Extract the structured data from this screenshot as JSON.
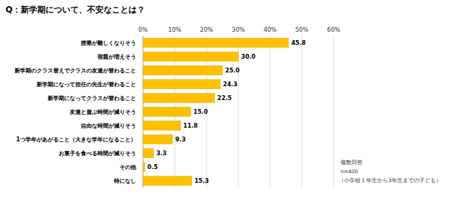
{
  "chart_data": {
    "type": "bar",
    "orientation": "horizontal",
    "title": "Q：新学期について、不安なことは？",
    "categories": [
      "授業が難しくなりそう",
      "宿題が増えそう",
      "新学期のクラス替えでクラスの友達が替わること",
      "新学期になって担任の先生が替わること",
      "新学期になってクラスが替わること",
      "友達と遊ぶ時間が減りそう",
      "自由な時間が減りそう",
      "1つ学年があがること（大きな学年になること）",
      "お菓子を食べる時間が減りそう",
      "その他",
      "特になし"
    ],
    "values": [
      45.8,
      30.0,
      25.0,
      24.3,
      22.5,
      15.0,
      11.8,
      9.3,
      3.3,
      0.5,
      15.3
    ],
    "value_labels": [
      "45.8",
      "30.0",
      "25.0",
      "24.3",
      "22.5",
      "15.0",
      "11.8",
      "9.3",
      "3.3",
      "0.5",
      "15.3"
    ],
    "color": "#ffc000",
    "xlim": [
      0,
      60
    ],
    "xticks": [
      {
        "value": 0,
        "label": "0%"
      },
      {
        "value": 10,
        "label": "10%"
      },
      {
        "value": 20,
        "label": "20%"
      },
      {
        "value": 30,
        "label": "30%"
      },
      {
        "value": 40,
        "label": "40%"
      },
      {
        "value": 50,
        "label": "50%"
      },
      {
        "value": 60,
        "label": "60%"
      }
    ],
    "grid": true,
    "data_labels": true,
    "annotations": [
      "複数回答",
      "n=400",
      "（小学校１年生から3年生までの子ども）"
    ]
  }
}
